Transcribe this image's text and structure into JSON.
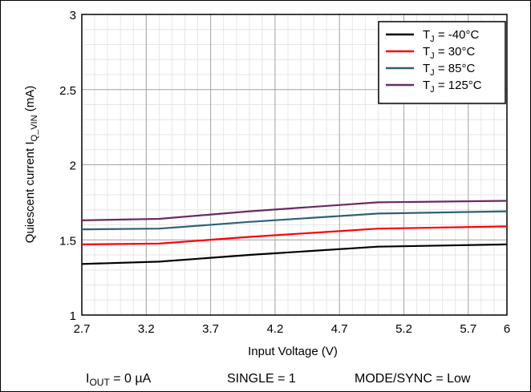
{
  "chart_data": {
    "type": "line",
    "title": "",
    "xlabel": "Input Voltage (V)",
    "ylabel_main": "Quiescent current I",
    "ylabel_sub": "Q_VIN",
    "ylabel_unit": " (mA)",
    "xlim": [
      2.7,
      6
    ],
    "ylim": [
      1,
      3
    ],
    "x_ticks": [
      "2.7",
      "3.2",
      "3.7",
      "4.2",
      "4.7",
      "5.2",
      "5.7",
      "6"
    ],
    "y_ticks": [
      "1",
      "1.5",
      "2",
      "2.5",
      "3"
    ],
    "grid": true,
    "legend_position": "top-right",
    "series": [
      {
        "name_main": "T",
        "name_sub": "J",
        "name_rest": " = -40°C",
        "color": "#000000",
        "x": [
          2.7,
          3.3,
          4.0,
          5.0,
          6.0
        ],
        "y": [
          1.34,
          1.355,
          1.4,
          1.455,
          1.47
        ]
      },
      {
        "name_main": "T",
        "name_sub": "J",
        "name_rest": " =  30°C",
        "color": "#ff0000",
        "x": [
          2.7,
          3.3,
          4.0,
          5.0,
          6.0
        ],
        "y": [
          1.47,
          1.475,
          1.52,
          1.575,
          1.59
        ]
      },
      {
        "name_main": "T",
        "name_sub": "J",
        "name_rest": " =  85°C",
        "color": "#2f6173",
        "x": [
          2.7,
          3.3,
          4.0,
          5.0,
          6.0
        ],
        "y": [
          1.57,
          1.575,
          1.62,
          1.675,
          1.69
        ]
      },
      {
        "name_main": "T",
        "name_sub": "J",
        "name_rest": " = 125°C",
        "color": "#6b2a63",
        "x": [
          2.7,
          3.3,
          4.0,
          5.0,
          6.0
        ],
        "y": [
          1.63,
          1.64,
          1.69,
          1.75,
          1.76
        ]
      }
    ]
  },
  "footer": {
    "iout_main": "I",
    "iout_sub": "OUT",
    "iout_rest": " = 0 µA",
    "single": "SINGLE = 1",
    "mode": "MODE/SYNC = Low"
  }
}
